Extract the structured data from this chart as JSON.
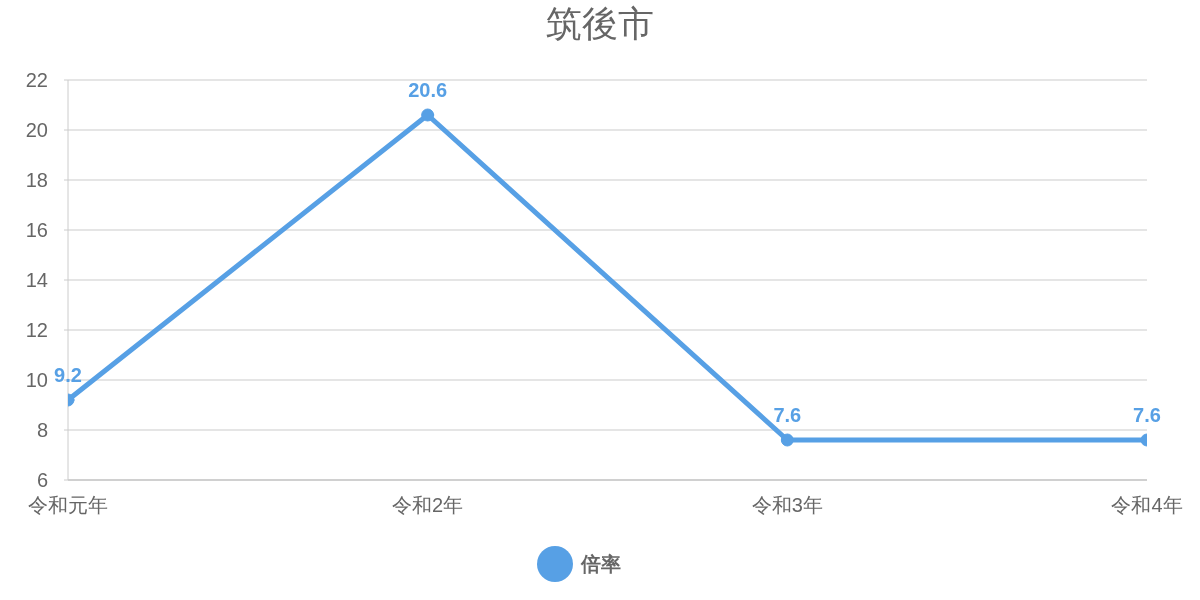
{
  "chart_data": {
    "type": "line",
    "title": "筑後市",
    "categories": [
      "令和元年",
      "令和2年",
      "令和3年",
      "令和4年"
    ],
    "series": [
      {
        "name": "倍率",
        "color": "#57a0e5",
        "values": [
          9.2,
          20.6,
          7.6,
          7.6
        ]
      }
    ],
    "ylim": [
      6,
      22
    ],
    "yticks": [
      6,
      8,
      10,
      12,
      14,
      16,
      18,
      20,
      22
    ],
    "grid": "y",
    "legend": "bottom",
    "marker": "circle",
    "line_style": "solid",
    "data_labels": true
  }
}
